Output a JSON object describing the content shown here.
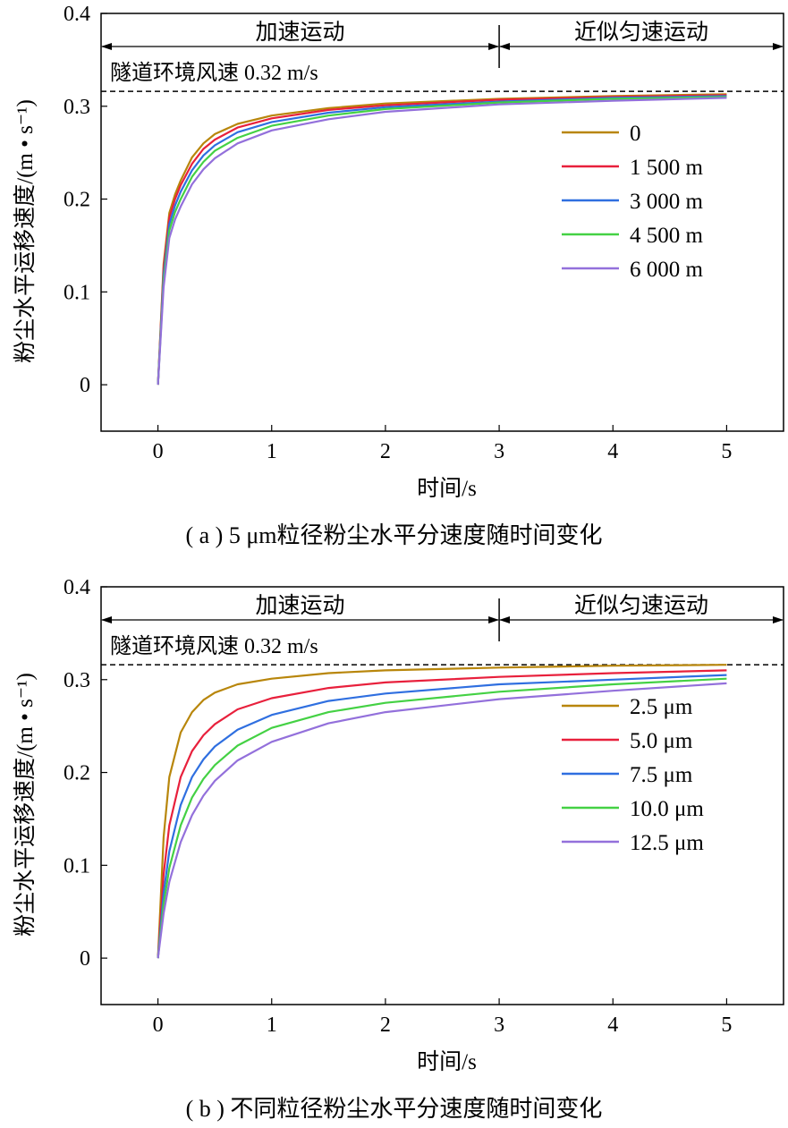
{
  "chart_data": [
    {
      "type": "line",
      "caption": "( a ) 5 μm粒径粉尘水平分速度随时间变化",
      "xlabel": "时间/s",
      "ylabel": "粉尘水平运移速度/(m • s⁻¹)",
      "xlim": [
        -0.5,
        5.5
      ],
      "ylim": [
        -0.05,
        0.4
      ],
      "xticks": [
        0,
        1,
        2,
        3,
        4,
        5
      ],
      "yticks": [
        0,
        0.1,
        0.2,
        0.3,
        0.4
      ],
      "xtick_labels": [
        "0",
        "1",
        "2",
        "3",
        "4",
        "5"
      ],
      "ytick_labels": [
        "0",
        "0.1",
        "0.2",
        "0.3",
        "0.4"
      ],
      "reference_line": {
        "y": 0.316,
        "label": "隧道环境风速 0.32 m/s"
      },
      "phase_divider_x": 3,
      "phases": [
        "加速运动",
        "近似匀速运动"
      ],
      "legend_position": "right",
      "x": [
        0,
        0.05,
        0.1,
        0.15,
        0.2,
        0.3,
        0.4,
        0.5,
        0.7,
        1.0,
        1.5,
        2.0,
        3.0,
        4.0,
        5.0
      ],
      "series": [
        {
          "name": "0",
          "color": "#b8860b",
          "values": [
            0,
            0.13,
            0.185,
            0.205,
            0.22,
            0.245,
            0.26,
            0.27,
            0.281,
            0.29,
            0.298,
            0.303,
            0.308,
            0.311,
            0.313
          ]
        },
        {
          "name": "1 500 m",
          "color": "#e8203c",
          "values": [
            0,
            0.125,
            0.18,
            0.2,
            0.215,
            0.238,
            0.254,
            0.264,
            0.277,
            0.287,
            0.296,
            0.301,
            0.307,
            0.31,
            0.312
          ]
        },
        {
          "name": "3 000 m",
          "color": "#2f6fe0",
          "values": [
            0,
            0.118,
            0.173,
            0.193,
            0.208,
            0.231,
            0.247,
            0.258,
            0.272,
            0.283,
            0.293,
            0.299,
            0.305,
            0.309,
            0.311
          ]
        },
        {
          "name": "4 500 m",
          "color": "#44d144",
          "values": [
            0,
            0.112,
            0.166,
            0.186,
            0.2,
            0.224,
            0.24,
            0.252,
            0.266,
            0.279,
            0.29,
            0.297,
            0.304,
            0.308,
            0.31
          ]
        },
        {
          "name": "6 000 m",
          "color": "#9370db",
          "values": [
            0,
            0.105,
            0.158,
            0.178,
            0.192,
            0.216,
            0.232,
            0.244,
            0.26,
            0.274,
            0.286,
            0.294,
            0.302,
            0.306,
            0.309
          ]
        }
      ]
    },
    {
      "type": "line",
      "caption": "( b ) 不同粒径粉尘水平分速度随时间变化",
      "xlabel": "时间/s",
      "ylabel": "粉尘水平运移速度/(m • s⁻¹)",
      "xlim": [
        -0.5,
        5.5
      ],
      "ylim": [
        -0.05,
        0.4
      ],
      "xticks": [
        0,
        1,
        2,
        3,
        4,
        5
      ],
      "yticks": [
        0,
        0.1,
        0.2,
        0.3,
        0.4
      ],
      "xtick_labels": [
        "0",
        "1",
        "2",
        "3",
        "4",
        "5"
      ],
      "ytick_labels": [
        "0",
        "0.1",
        "0.2",
        "0.3",
        "0.4"
      ],
      "reference_line": {
        "y": 0.316,
        "label": "隧道环境风速 0.32 m/s"
      },
      "phase_divider_x": 3,
      "phases": [
        "加速运动",
        "近似匀速运动"
      ],
      "legend_position": "right",
      "x": [
        0,
        0.05,
        0.1,
        0.2,
        0.3,
        0.4,
        0.5,
        0.7,
        1.0,
        1.5,
        2.0,
        3.0,
        4.0,
        5.0
      ],
      "series": [
        {
          "name": "2.5 μm",
          "color": "#b8860b",
          "values": [
            0,
            0.13,
            0.195,
            0.243,
            0.265,
            0.278,
            0.286,
            0.295,
            0.301,
            0.307,
            0.31,
            0.313,
            0.315,
            0.316
          ]
        },
        {
          "name": "5.0 μm",
          "color": "#e8203c",
          "values": [
            0,
            0.09,
            0.143,
            0.195,
            0.223,
            0.24,
            0.252,
            0.268,
            0.28,
            0.291,
            0.297,
            0.303,
            0.307,
            0.31
          ]
        },
        {
          "name": "7.5 μm",
          "color": "#2f6fe0",
          "values": [
            0,
            0.07,
            0.115,
            0.165,
            0.195,
            0.214,
            0.228,
            0.246,
            0.262,
            0.277,
            0.285,
            0.295,
            0.3,
            0.305
          ]
        },
        {
          "name": "10.0 μm",
          "color": "#44d144",
          "values": [
            0,
            0.058,
            0.097,
            0.143,
            0.173,
            0.193,
            0.208,
            0.229,
            0.248,
            0.265,
            0.275,
            0.287,
            0.295,
            0.301
          ]
        },
        {
          "name": "12.5 μm",
          "color": "#9370db",
          "values": [
            0,
            0.048,
            0.082,
            0.125,
            0.154,
            0.175,
            0.191,
            0.213,
            0.233,
            0.253,
            0.265,
            0.279,
            0.288,
            0.296
          ]
        }
      ]
    }
  ]
}
